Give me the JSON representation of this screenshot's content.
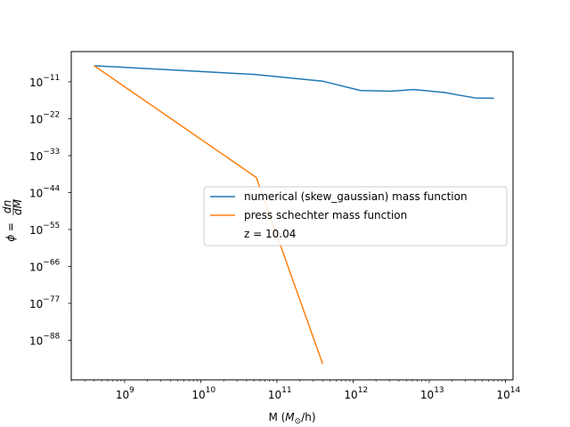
{
  "chart_data": {
    "type": "line",
    "title": "",
    "xlabel": "M (M⊙/h)",
    "ylabel": "ϕ = dn/dM",
    "xscale": "log",
    "yscale": "log",
    "xlim_exp": [
      8.3,
      14.1
    ],
    "ylim_exp": [
      -99.8,
      -2.0
    ],
    "x_ticks": [
      {
        "base": "10",
        "exp": "9",
        "value_exp": 9
      },
      {
        "base": "10",
        "exp": "10",
        "value_exp": 10
      },
      {
        "base": "10",
        "exp": "11",
        "value_exp": 11
      },
      {
        "base": "10",
        "exp": "12",
        "value_exp": 12
      },
      {
        "base": "10",
        "exp": "13",
        "value_exp": 13
      },
      {
        "base": "10",
        "exp": "14",
        "value_exp": 14
      }
    ],
    "y_ticks": [
      {
        "base": "10",
        "exp": "−11",
        "value_exp": -11
      },
      {
        "base": "10",
        "exp": "−22",
        "value_exp": -22
      },
      {
        "base": "10",
        "exp": "−33",
        "value_exp": -33
      },
      {
        "base": "10",
        "exp": "−44",
        "value_exp": -44
      },
      {
        "base": "10",
        "exp": "−55",
        "value_exp": -55
      },
      {
        "base": "10",
        "exp": "−66",
        "value_exp": -66
      },
      {
        "base": "10",
        "exp": "−77",
        "value_exp": -77
      },
      {
        "base": "10",
        "exp": "−88",
        "value_exp": -88
      }
    ],
    "series": [
      {
        "name": "numerical (skew_gaussian) mass function",
        "color": "#1f77b4",
        "points_log10": [
          [
            8.6,
            -6.2
          ],
          [
            10.7,
            -8.8
          ],
          [
            11.6,
            -10.8
          ],
          [
            12.1,
            -13.6
          ],
          [
            12.5,
            -13.8
          ],
          [
            12.8,
            -13.3
          ],
          [
            13.2,
            -14.2
          ],
          [
            13.6,
            -15.8
          ],
          [
            13.85,
            -15.9
          ]
        ]
      },
      {
        "name": "press schechter mass function",
        "color": "#ff7f0e",
        "points_log10": [
          [
            8.6,
            -6.2
          ],
          [
            10.73,
            -39.5
          ],
          [
            11.6,
            -95.0
          ]
        ]
      }
    ],
    "legend": {
      "position": "center-right",
      "entries": [
        "numerical (skew_gaussian) mass function",
        "press schechter mass function"
      ],
      "note": "z = 10.04"
    },
    "grid": false
  }
}
